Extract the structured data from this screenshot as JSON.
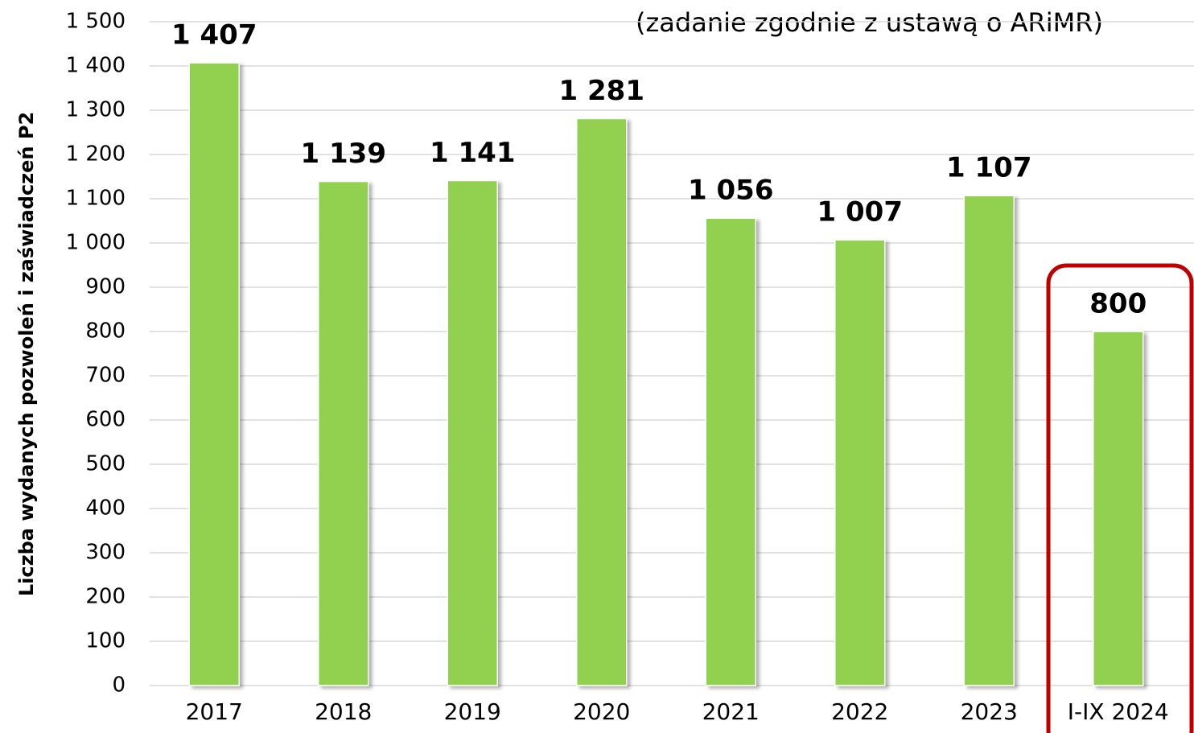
{
  "chart_data": {
    "type": "bar",
    "subtitle": "(zadanie zgodnie z ustawą o ARiMR)",
    "y_label": "Liczba wydanych pozwoleń i zaświadczeń P2",
    "categories": [
      "2017",
      "2018",
      "2019",
      "2020",
      "2021",
      "2022",
      "2023",
      "I-IX 2024"
    ],
    "values": [
      1407,
      1139,
      1141,
      1281,
      1056,
      1007,
      1107,
      800
    ],
    "value_labels": [
      "1 407",
      "1 139",
      "1 141",
      "1 281",
      "1 056",
      "1 007",
      "1 107",
      "800"
    ],
    "color": "#92d050",
    "ylim": [
      0,
      1500
    ],
    "yticks": [
      0,
      100,
      200,
      300,
      400,
      500,
      600,
      700,
      800,
      900,
      {
        "value": 1000,
        "label": "1 000"
      },
      {
        "value": 1100,
        "label": "1 100"
      },
      {
        "value": 1200,
        "label": "1 200"
      },
      {
        "value": 1300,
        "label": "1 300"
      },
      {
        "value": 1400,
        "label": "1 400"
      },
      {
        "value": 1500,
        "label": "1 500"
      }
    ],
    "grid": true
  }
}
